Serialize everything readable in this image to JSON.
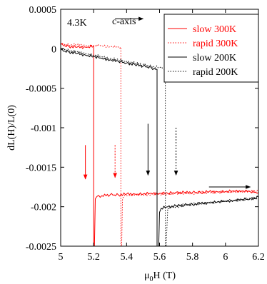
{
  "chart_data": {
    "type": "line",
    "title": "",
    "xlabel": "μ0H (T)",
    "xlabel_main": "μ",
    "xlabel_sub": "0",
    "xlabel_rest": "H (T)",
    "ylabel": "dL(H)/L(0)",
    "xlim": [
      5,
      6.2
    ],
    "ylim": [
      -0.0025,
      0.0005
    ],
    "xticks": [
      5,
      5.2,
      5.4,
      5.6,
      5.8,
      6,
      6.2
    ],
    "xtick_labels": [
      "5",
      "5.2",
      "5.4",
      "5.6",
      "5.8",
      "6",
      "6.2"
    ],
    "yticks": [
      0.0005,
      0,
      -0.0005,
      -0.001,
      -0.0015,
      -0.002,
      -0.0025
    ],
    "ytick_labels": [
      "0.0005",
      "0",
      "-0.0005",
      "-0.001",
      "-0.0015",
      "-0.002",
      "-0.0025"
    ],
    "grid": false,
    "legend_position": "top-right",
    "annotations": {
      "temperature": "4.3K",
      "axis": "c-axis"
    },
    "colors": {
      "red": "#ff0000",
      "black": "#000000"
    },
    "series": [
      {
        "name": "slow 300K",
        "color": "#ff0000",
        "style": "solid",
        "x": [
          5.0,
          5.05,
          5.1,
          5.15,
          5.2,
          5.2,
          5.205,
          5.21,
          5.22,
          5.25,
          5.3,
          5.35,
          5.4,
          5.45,
          5.5,
          5.55,
          5.6,
          5.65,
          5.7,
          5.75,
          5.8,
          5.85,
          5.9,
          5.95,
          6.0,
          6.05,
          6.1,
          6.15,
          6.2
        ],
        "y": [
          5e-05,
          3e-05,
          2e-05,
          2e-05,
          3e-05,
          -0.0025,
          -0.0025,
          -0.0019,
          -0.00187,
          -0.00186,
          -0.00185,
          -0.00185,
          -0.00184,
          -0.00184,
          -0.00184,
          -0.00183,
          -0.00183,
          -0.00183,
          -0.00182,
          -0.00182,
          -0.00182,
          -0.00182,
          -0.00181,
          -0.00181,
          -0.00181,
          -0.0018,
          -0.0018,
          -0.00181,
          -0.00182
        ]
      },
      {
        "name": "rapid 300K",
        "color": "#ff0000",
        "style": "dotted",
        "x": [
          5.0,
          5.05,
          5.1,
          5.15,
          5.2,
          5.25,
          5.3,
          5.35,
          5.365,
          5.365,
          5.37,
          5.375,
          5.38,
          5.4,
          5.45,
          5.5,
          5.55,
          5.6,
          5.65,
          5.7,
          5.75,
          5.8,
          5.85,
          5.9,
          5.95,
          6.0,
          6.05,
          6.1,
          6.15,
          6.2
        ],
        "y": [
          6e-05,
          5e-05,
          5e-05,
          4e-05,
          4e-05,
          4e-05,
          3e-05,
          2e-05,
          2e-05,
          -0.0025,
          -0.0025,
          -0.0019,
          -0.00188,
          -0.00186,
          -0.00185,
          -0.00185,
          -0.00184,
          -0.00184,
          -0.00184,
          -0.00183,
          -0.00183,
          -0.00183,
          -0.00182,
          -0.00182,
          -0.00182,
          -0.00181,
          -0.00181,
          -0.00181,
          -0.0018,
          -0.00181
        ]
      },
      {
        "name": "slow 200K",
        "color": "#000000",
        "style": "solid",
        "x": [
          5.0,
          5.05,
          5.1,
          5.15,
          5.2,
          5.25,
          5.3,
          5.35,
          5.4,
          5.45,
          5.5,
          5.55,
          5.575,
          5.585,
          5.585,
          5.595,
          5.6,
          5.61,
          5.65,
          5.7,
          5.75,
          5.8,
          5.85,
          5.9,
          5.95,
          6.0,
          6.05,
          6.1,
          6.15,
          6.2
        ],
        "y": [
          -2e-05,
          -4e-05,
          -6e-05,
          -8e-05,
          -0.0001,
          -0.00012,
          -0.00014,
          -0.00016,
          -0.00018,
          -0.0002,
          -0.00022,
          -0.00024,
          -0.00026,
          -0.00026,
          -0.0025,
          -0.0025,
          -0.00207,
          -0.00202,
          -0.002,
          -0.00199,
          -0.00198,
          -0.00197,
          -0.00196,
          -0.00195,
          -0.00194,
          -0.00193,
          -0.00192,
          -0.00191,
          -0.0019,
          -0.00188
        ]
      },
      {
        "name": "rapid 200K",
        "color": "#000000",
        "style": "dotted",
        "x": [
          5.0,
          5.05,
          5.1,
          5.15,
          5.2,
          5.25,
          5.3,
          5.35,
          5.4,
          5.45,
          5.5,
          5.55,
          5.6,
          5.62,
          5.635,
          5.635,
          5.64,
          5.65,
          5.7,
          5.75,
          5.8,
          5.85,
          5.9,
          5.95,
          6.0,
          6.05,
          6.1,
          6.15,
          6.2
        ],
        "y": [
          0.0,
          -2e-05,
          -4e-05,
          -6e-05,
          -8e-05,
          -0.0001,
          -0.00012,
          -0.00014,
          -0.00016,
          -0.00018,
          -0.0002,
          -0.00022,
          -0.00024,
          -0.00025,
          -0.00026,
          -0.0025,
          -0.0025,
          -0.00202,
          -0.002,
          -0.00198,
          -0.00197,
          -0.00196,
          -0.00195,
          -0.00194,
          -0.00193,
          -0.00192,
          -0.00191,
          -0.0019,
          -0.00189
        ]
      }
    ],
    "arrows": [
      {
        "name": "c-axis-arrow",
        "color": "#000000",
        "style": "solid",
        "x1": 5.33,
        "y1": 0.00038,
        "x2": 5.5,
        "y2": 0.00038
      },
      {
        "name": "arrow-slow-300k",
        "color": "#ff0000",
        "style": "solid",
        "x1": 5.15,
        "y1": -0.00122,
        "x2": 5.15,
        "y2": -0.00165
      },
      {
        "name": "arrow-rapid-300k",
        "color": "#ff0000",
        "style": "dotted",
        "x1": 5.33,
        "y1": -0.00122,
        "x2": 5.33,
        "y2": -0.00163
      },
      {
        "name": "arrow-slow-200k",
        "color": "#000000",
        "style": "solid",
        "x1": 5.53,
        "y1": -0.00095,
        "x2": 5.53,
        "y2": -0.0016
      },
      {
        "name": "arrow-rapid-200k",
        "color": "#000000",
        "style": "dotted",
        "x1": 5.7,
        "y1": -0.001,
        "x2": 5.7,
        "y2": -0.0016
      },
      {
        "name": "arrow-field-up",
        "color": "#000000",
        "style": "solid",
        "x1": 5.9,
        "y1": -0.00175,
        "x2": 6.15,
        "y2": -0.00175
      }
    ]
  }
}
